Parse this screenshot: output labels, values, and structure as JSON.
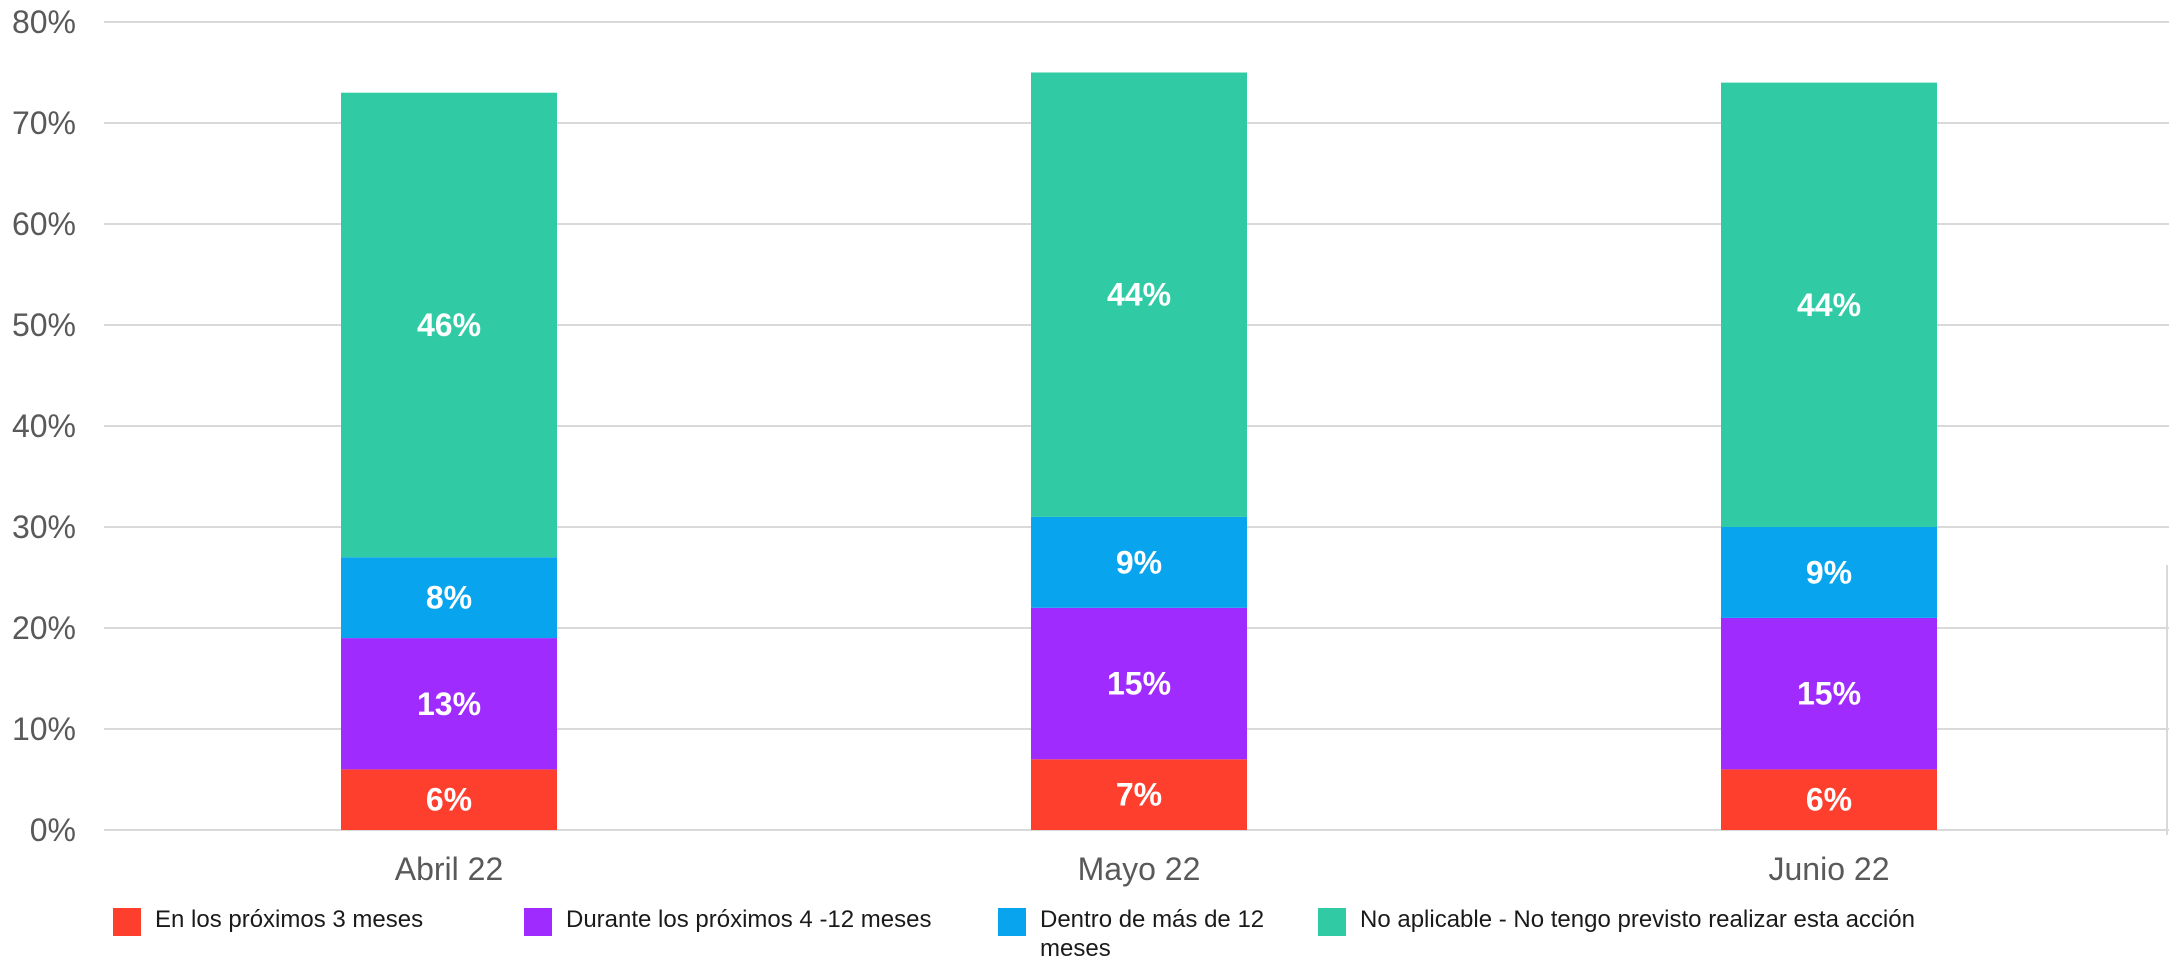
{
  "chart_data": {
    "type": "bar",
    "stacked": true,
    "categories": [
      "Abril 22",
      "Mayo 22",
      "Junio 22"
    ],
    "series": [
      {
        "name": "En los próximos 3 meses",
        "values": [
          6,
          7,
          6
        ],
        "color": "#ff3f2e"
      },
      {
        "name": "Durante los próximos 4 -12 meses",
        "values": [
          13,
          15,
          15
        ],
        "color": "#9f2bff"
      },
      {
        "name": "Dentro de más de 12 meses",
        "values": [
          8,
          9,
          9
        ],
        "color": "#08a4ee"
      },
      {
        "name": "No aplicable - No tengo previsto realizar esta acción",
        "values": [
          46,
          44,
          44
        ],
        "color": "#30cba5"
      }
    ],
    "data_labels": [
      [
        "6%",
        "7%",
        "6%"
      ],
      [
        "13%",
        "15%",
        "15%"
      ],
      [
        "8%",
        "9%",
        "9%"
      ],
      [
        "46%",
        "44%",
        "44%"
      ]
    ],
    "title": "",
    "xlabel": "",
    "ylabel": "",
    "ylim": [
      0,
      80
    ],
    "yticks": [
      "0%",
      "10%",
      "20%",
      "30%",
      "40%",
      "50%",
      "60%",
      "70%",
      "80%"
    ],
    "grid": true,
    "legend_position": "bottom"
  }
}
